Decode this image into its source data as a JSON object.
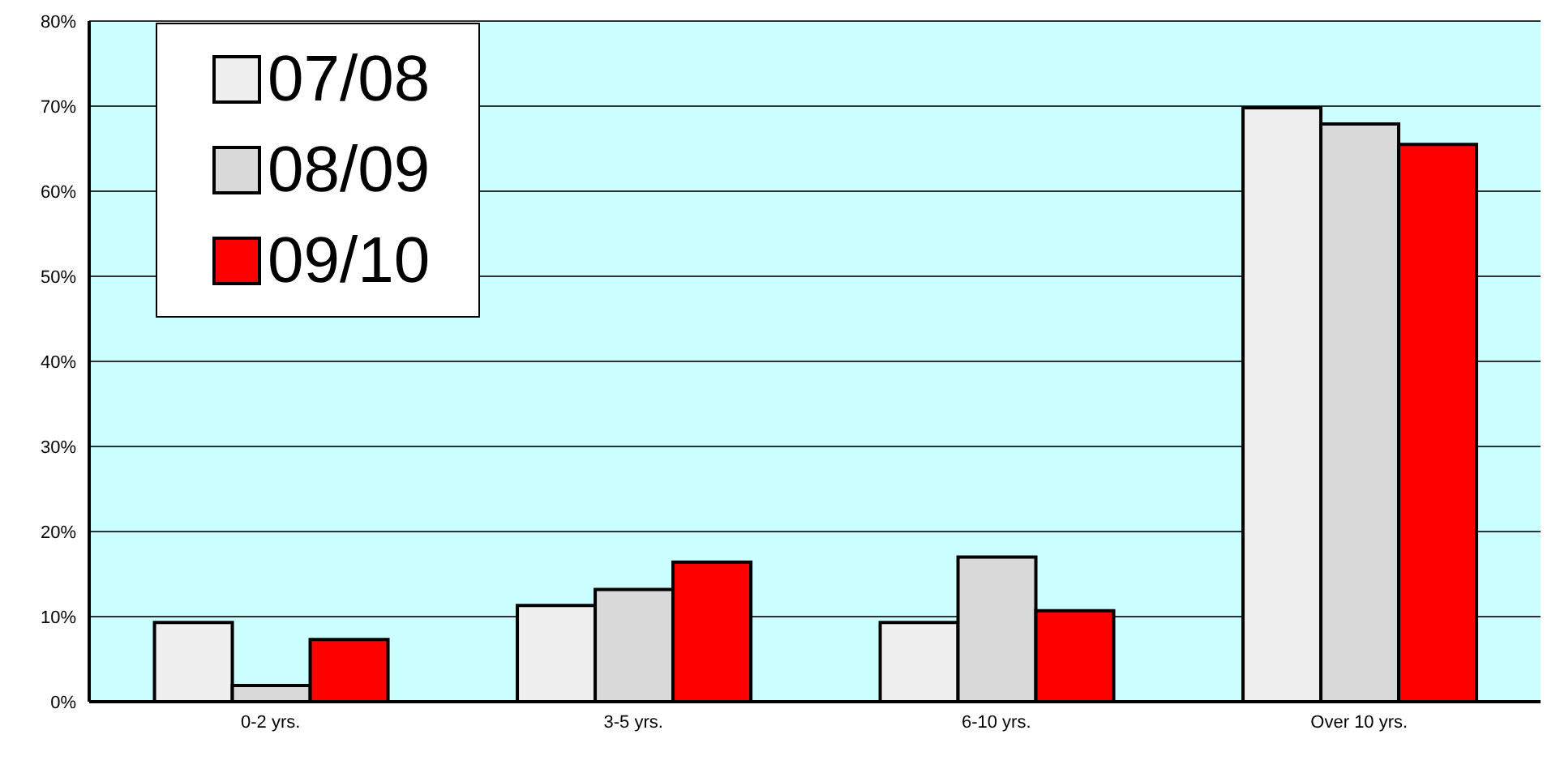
{
  "chart_data": {
    "type": "bar",
    "categories": [
      "0-2 yrs.",
      "3-5 yrs.",
      "6-10 yrs.",
      "Over 10 yrs."
    ],
    "series": [
      {
        "name": "07/08",
        "color": "#eeeeee",
        "values": [
          9.3,
          11.3,
          9.3,
          69.8
        ]
      },
      {
        "name": "08/09",
        "color": "#d9d9d9",
        "values": [
          1.9,
          13.2,
          17.0,
          67.9
        ]
      },
      {
        "name": "09/10",
        "color": "#ff0000",
        "values": [
          7.3,
          16.4,
          10.7,
          65.5
        ]
      }
    ],
    "ylim": [
      0,
      80
    ],
    "yticks": [
      {
        "value": 0,
        "label": "0%"
      },
      {
        "value": 10,
        "label": "10%"
      },
      {
        "value": 20,
        "label": "20%"
      },
      {
        "value": 30,
        "label": "30%"
      },
      {
        "value": 40,
        "label": "40%"
      },
      {
        "value": 50,
        "label": "50%"
      },
      {
        "value": 60,
        "label": "60%"
      },
      {
        "value": 70,
        "label": "70%"
      },
      {
        "value": 80,
        "label": "80%"
      }
    ],
    "grid": "y",
    "legend": "top left"
  }
}
